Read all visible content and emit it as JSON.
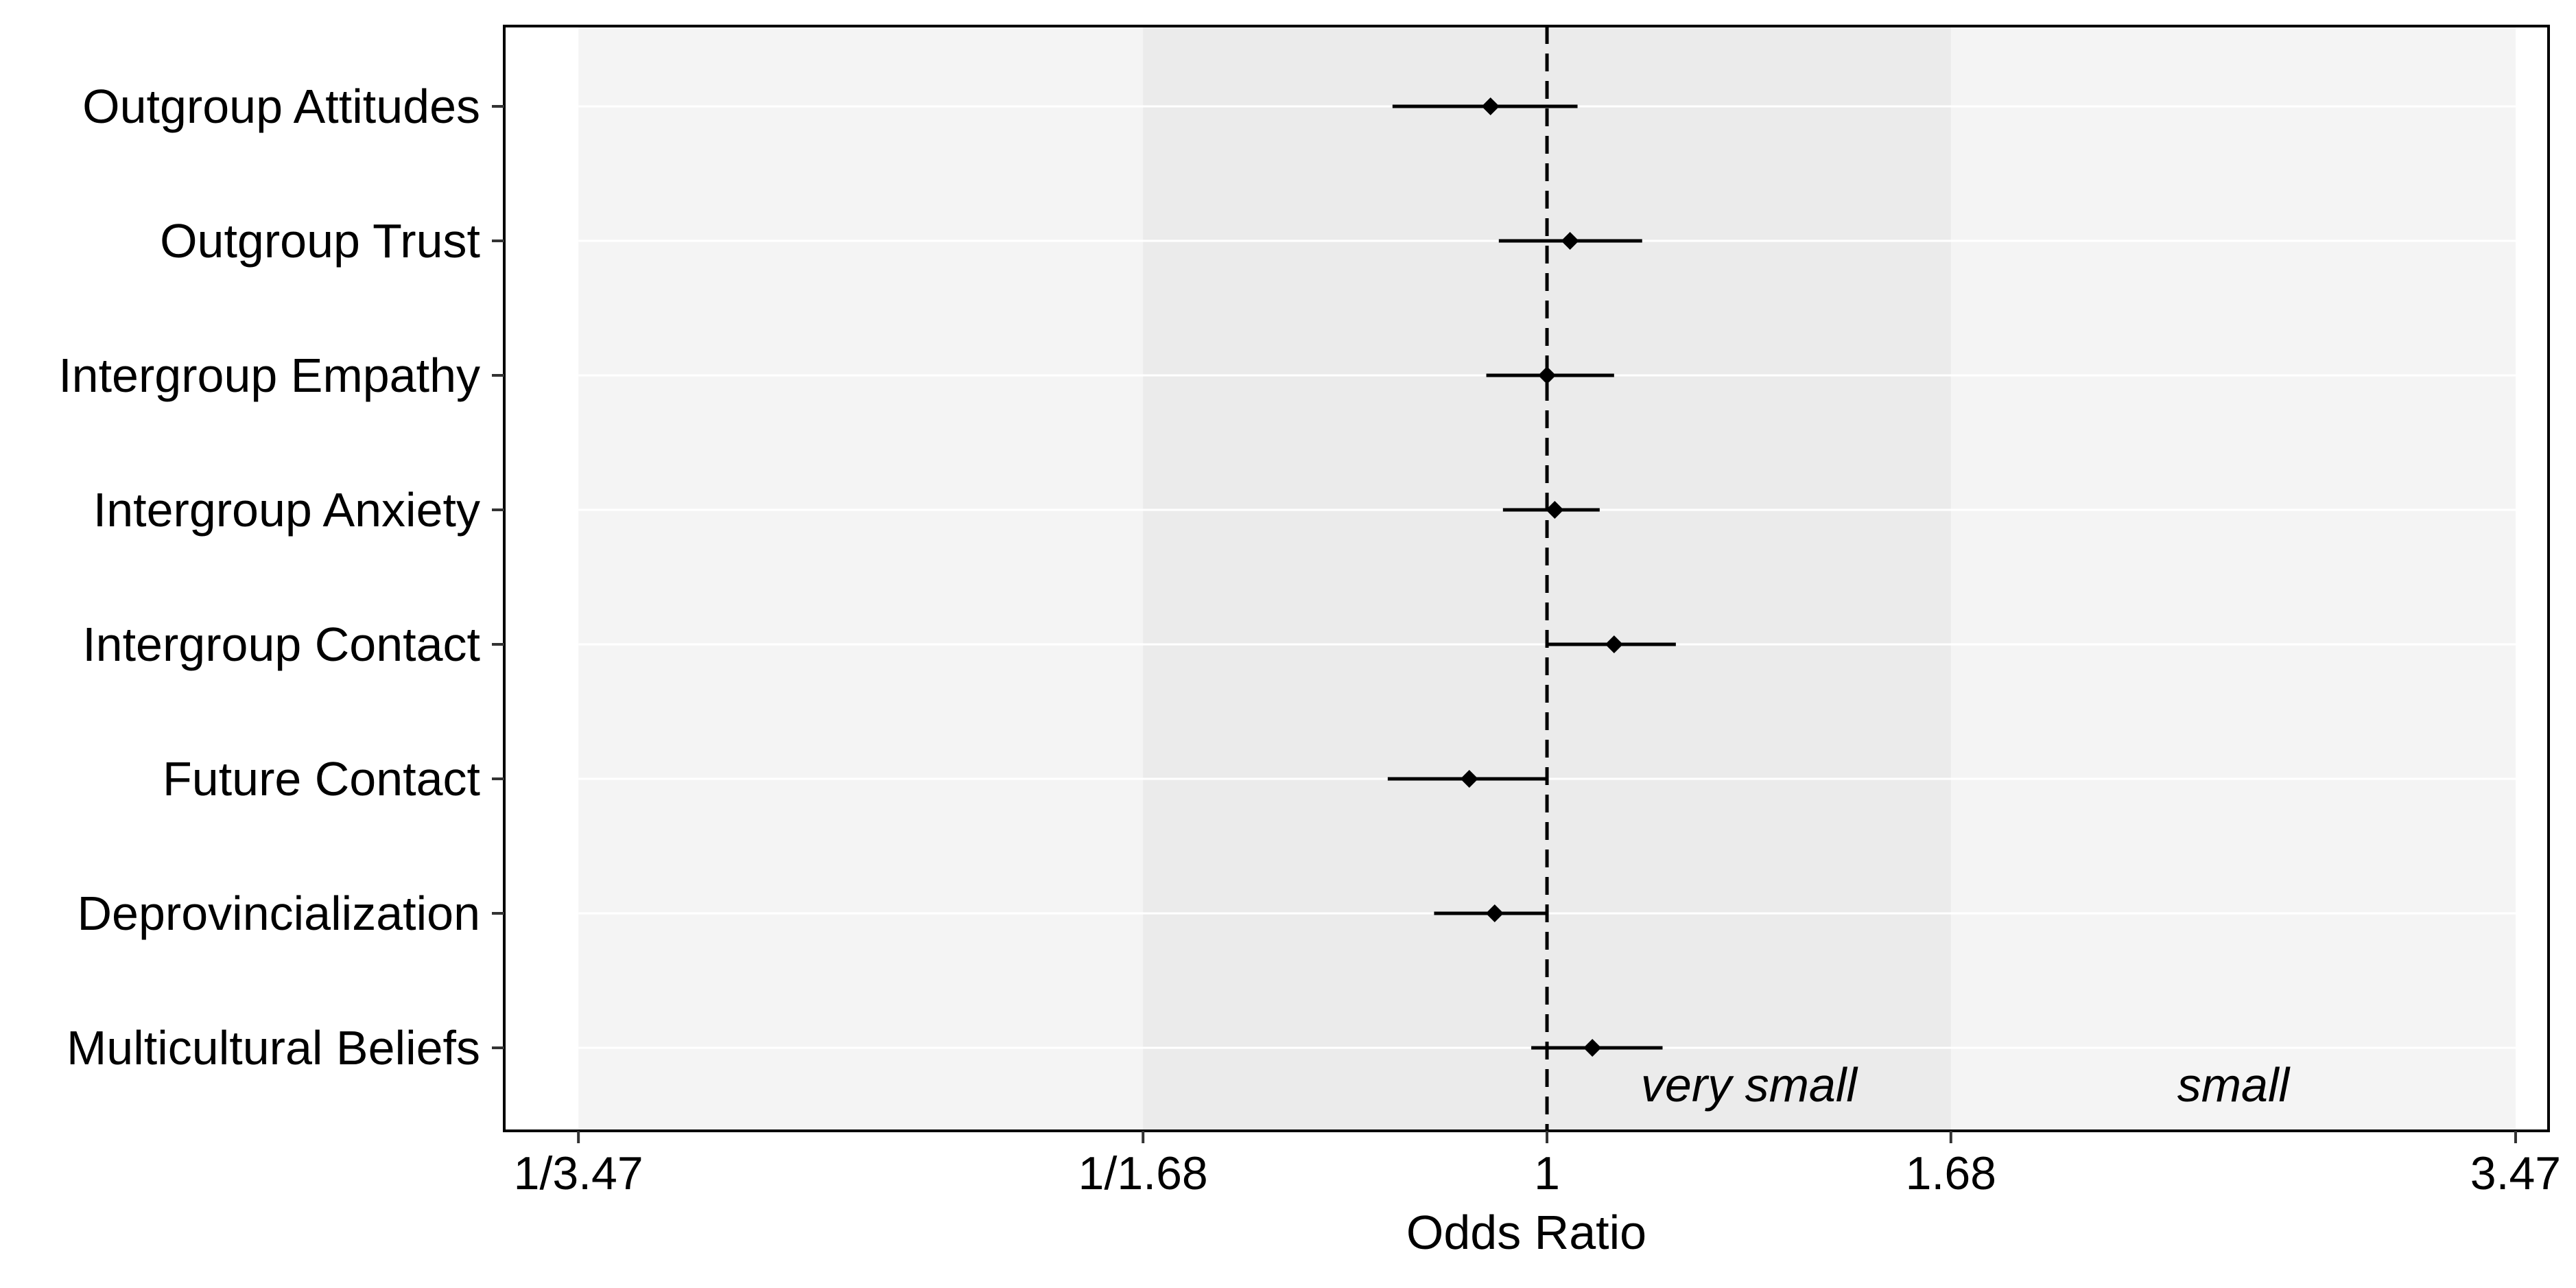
{
  "chart_data": {
    "type": "forest",
    "xlabel": "Odds Ratio",
    "x_scale": "log",
    "xlim": [
      0.262,
      3.62
    ],
    "x_ticks": [
      {
        "value": 0.2882,
        "label": "1/3.47"
      },
      {
        "value": 0.5952,
        "label": "1/1.68"
      },
      {
        "value": 1,
        "label": "1"
      },
      {
        "value": 1.68,
        "label": "1.68"
      },
      {
        "value": 3.47,
        "label": "3.47"
      }
    ],
    "reference_line": {
      "value": 1,
      "style": "dashed"
    },
    "zones": [
      {
        "label": "very small",
        "from": 0.5952,
        "to": 1.68,
        "color": "#ebebeb"
      },
      {
        "label": "small",
        "from": 0.2882,
        "to": 3.47,
        "color": "#f4f4f4"
      }
    ],
    "panel_background": "#ffffff",
    "categories": [
      "Outgroup Attitudes",
      "Outgroup Trust",
      "Intergroup Empathy",
      "Intergroup Anxiety",
      "Intergroup Contact",
      "Future Contact",
      "Deprovincialization",
      "Multicultural Beliefs"
    ],
    "estimates": [
      0.93,
      1.03,
      1.0,
      1.01,
      1.09,
      0.905,
      0.935,
      1.06
    ],
    "ci_lower": [
      0.82,
      0.94,
      0.925,
      0.945,
      1.0,
      0.815,
      0.865,
      0.98
    ],
    "ci_upper": [
      1.04,
      1.13,
      1.09,
      1.07,
      1.18,
      1.0,
      1.0,
      1.16
    ],
    "marker": "diamond",
    "grid": true,
    "legend": "none"
  }
}
